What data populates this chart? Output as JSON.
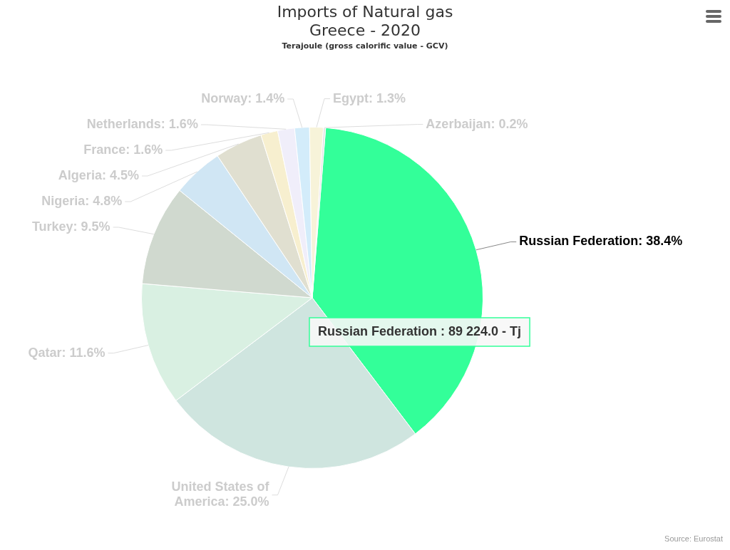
{
  "chart_data": {
    "type": "pie",
    "title": "Imports of Natural gas\nGreece - 2020",
    "subtitle": "Terajoule (gross calorific value - GCV)",
    "categories": [
      "Russian Federation",
      "United States of America",
      "Qatar",
      "Turkey",
      "Nigeria",
      "Algeria",
      "France",
      "Netherlands",
      "Norway",
      "Egypt",
      "Azerbaijan"
    ],
    "values": [
      38.4,
      25.0,
      11.6,
      9.5,
      4.8,
      4.5,
      1.6,
      1.6,
      1.4,
      1.3,
      0.2
    ],
    "colors": [
      "#33ff99",
      "#cfe5df",
      "#d9f0e2",
      "#d0d9cf",
      "#d0e6f4",
      "#e0dfd0",
      "#f7efcf",
      "#f0eefa",
      "#d3ecfa",
      "#f7f3d9",
      "#e4e4e4"
    ],
    "value_labels": [
      "38.4%",
      "25.0%",
      "11.6%",
      "9.5%",
      "4.8%",
      "4.5%",
      "1.6%",
      "1.6%",
      "1.4%",
      "1.3%",
      "0.2%"
    ],
    "legend": false,
    "annotations": [
      {
        "text": "Russian Federation : 89 224.0 - Tj",
        "x": "Russian Federation"
      },
      "Source: Eurostat"
    ]
  }
}
